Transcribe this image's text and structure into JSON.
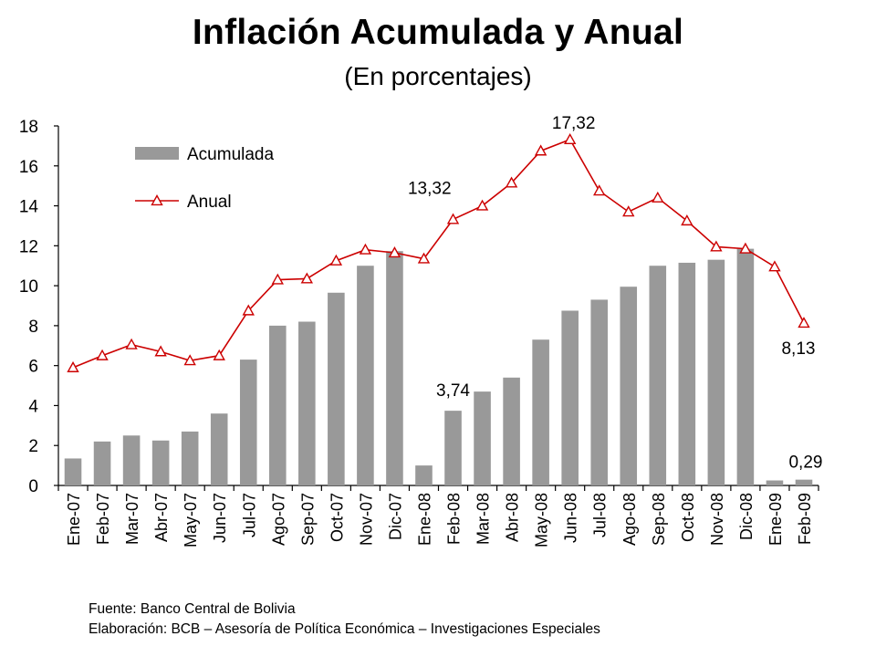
{
  "chart_data": {
    "type": "bar+line",
    "title": "Inflación Acumulada y Anual",
    "subtitle": "(En porcentajes)",
    "categories": [
      "Ene-07",
      "Feb-07",
      "Mar-07",
      "Abr-07",
      "May-07",
      "Jun-07",
      "Jul-07",
      "Ago-07",
      "Sep-07",
      "Oct-07",
      "Nov-07",
      "Dic-07",
      "Ene-08",
      "Feb-08",
      "Mar-08",
      "Abr-08",
      "May-08",
      "Jun-08",
      "Jul-08",
      "Ago-08",
      "Sep-08",
      "Oct-08",
      "Nov-08",
      "Dic-08",
      "Ene-09",
      "Feb-09"
    ],
    "series": [
      {
        "name": "Acumulada",
        "kind": "bar",
        "color": "#999999",
        "values": [
          1.35,
          2.2,
          2.5,
          2.25,
          2.7,
          3.6,
          6.3,
          8.0,
          8.2,
          9.65,
          11.0,
          11.73,
          1.0,
          3.74,
          4.7,
          5.4,
          7.3,
          8.75,
          9.3,
          9.95,
          11.0,
          11.15,
          11.3,
          11.85,
          0.25,
          0.29
        ]
      },
      {
        "name": "Anual",
        "kind": "line",
        "color": "#cc0000",
        "marker": "triangle",
        "values": [
          5.9,
          6.5,
          7.05,
          6.7,
          6.25,
          6.5,
          8.75,
          10.3,
          10.35,
          11.25,
          11.8,
          11.65,
          11.35,
          13.32,
          14.0,
          15.15,
          16.75,
          17.32,
          14.75,
          13.7,
          14.4,
          13.25,
          11.95,
          11.85,
          10.95,
          8.13
        ]
      }
    ],
    "ylim": [
      0,
      18
    ],
    "yticks": [
      0,
      2,
      4,
      6,
      8,
      10,
      12,
      14,
      16,
      18
    ],
    "grid": false,
    "legend": "top-left",
    "annotations": [
      {
        "text": "17,32",
        "category": "Jun-08",
        "series": "Anual"
      },
      {
        "text": "13,32",
        "category": "Feb-08",
        "series": "Anual"
      },
      {
        "text": "3,74",
        "category": "Feb-08",
        "series": "Acumulada"
      },
      {
        "text": "8,13",
        "category": "Feb-09",
        "series": "Anual"
      },
      {
        "text": "0,29",
        "category": "Feb-09",
        "series": "Acumulada"
      }
    ]
  },
  "footer": {
    "source": "Fuente: Banco Central de Bolivia",
    "elaboration": "Elaboración: BCB – Asesoría de Política Económica – Investigaciones Especiales"
  }
}
